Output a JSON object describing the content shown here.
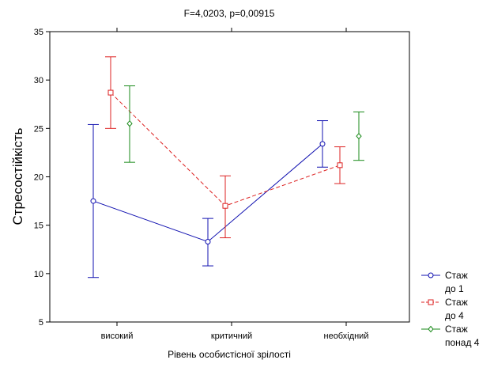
{
  "chart_data": {
    "type": "line",
    "title": "F=4,0203, p=0,00915",
    "xlabel": "Рівень особистісної зрілості",
    "ylabel": "Стресостійкість",
    "ylim": [
      5,
      35
    ],
    "yticks": [
      5,
      10,
      15,
      20,
      25,
      30,
      35
    ],
    "categories": [
      "високий",
      "критичний",
      "необхідний"
    ],
    "grid": false,
    "legend_position": "bottom-right",
    "series": [
      {
        "name_lines": [
          "Стаж",
          "до 1"
        ],
        "color": "#1010b0",
        "line_style": "solid",
        "marker": "circle",
        "values": [
          17.5,
          13.3,
          23.4
        ],
        "error_low": [
          9.6,
          10.8,
          21.0
        ],
        "error_high": [
          25.4,
          15.7,
          25.8
        ]
      },
      {
        "name_lines": [
          "Стаж",
          "до 4"
        ],
        "color": "#dd2222",
        "line_style": "dashed",
        "marker": "square",
        "values": [
          28.7,
          17.0,
          21.2
        ],
        "error_low": [
          25.0,
          13.7,
          19.3
        ],
        "error_high": [
          32.4,
          20.1,
          23.1
        ]
      },
      {
        "name_lines": [
          "Стаж",
          "понад 4"
        ],
        "color": "#1a8a1a",
        "line_style": "none",
        "marker": "diamond",
        "values": [
          25.5,
          null,
          24.2
        ],
        "error_low": [
          21.5,
          null,
          21.7
        ],
        "error_high": [
          29.4,
          null,
          26.7
        ]
      }
    ]
  }
}
